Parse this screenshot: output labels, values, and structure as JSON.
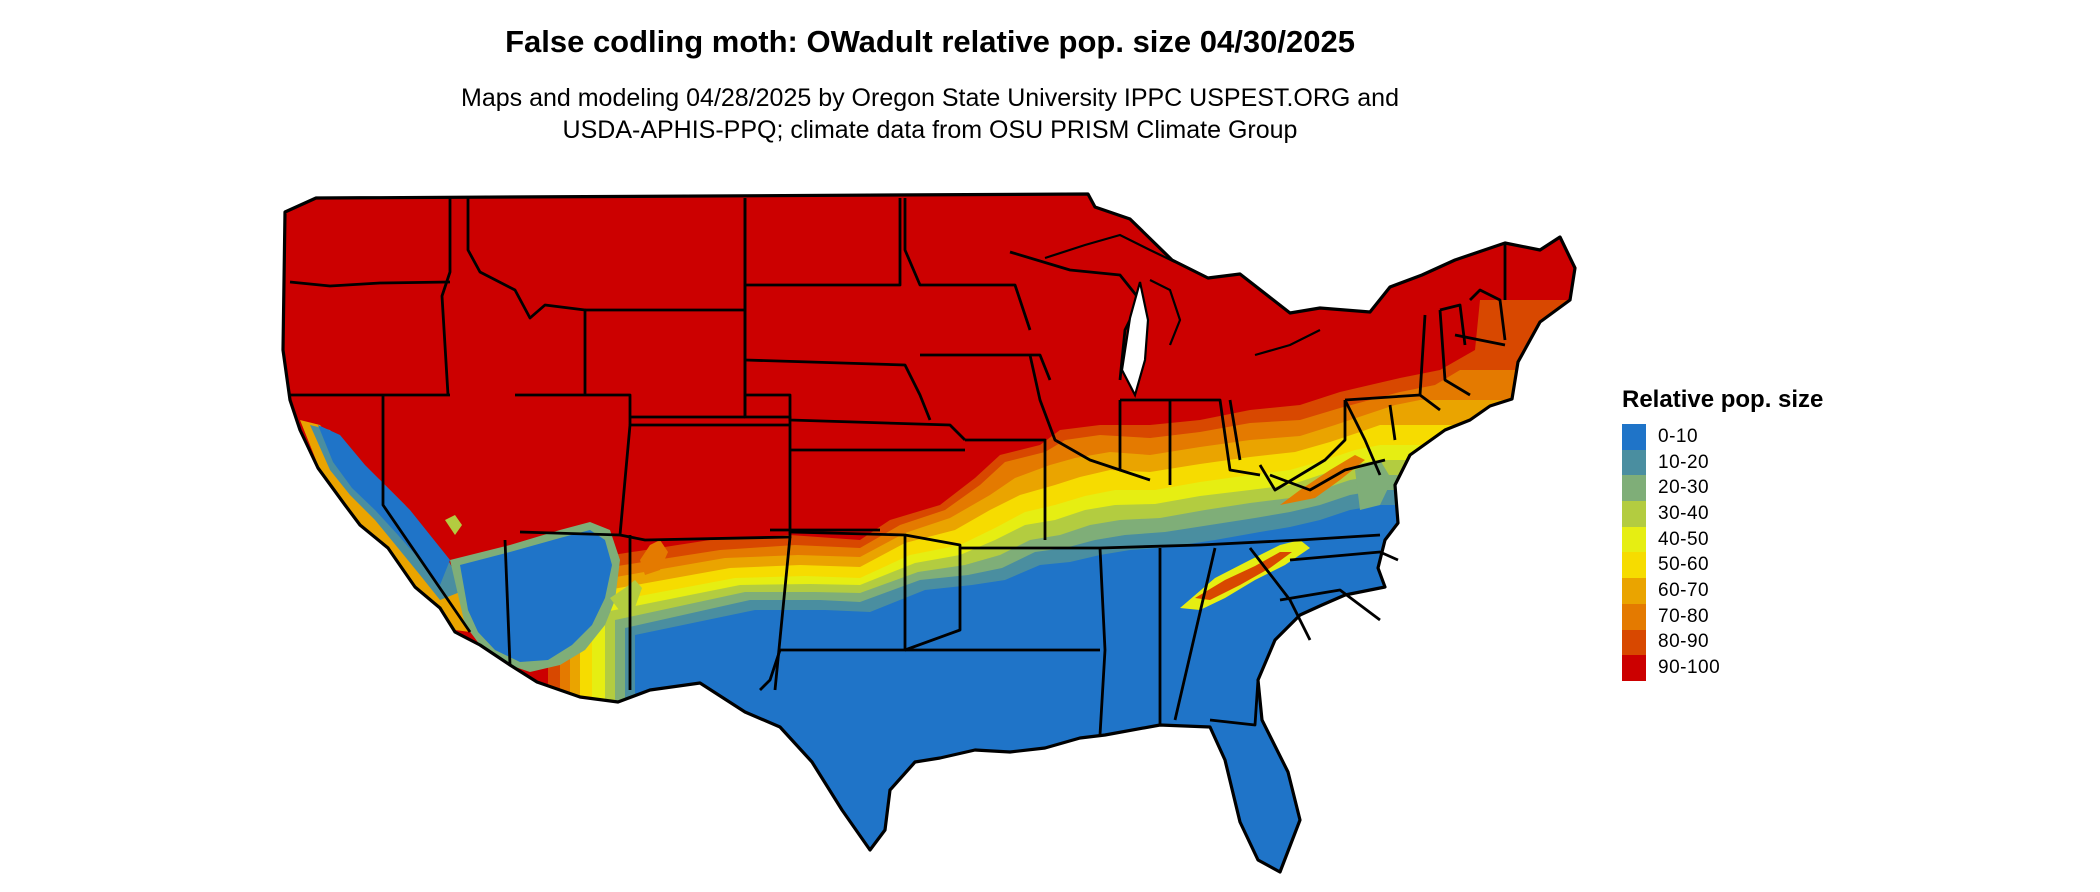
{
  "title": "False codling moth: OWadult relative pop. size 04/30/2025",
  "subtitle": {
    "line1": "Maps and modeling 04/28/2025 by Oregon State University IPPC USPEST.ORG and",
    "line2": "USDA-APHIS-PPQ; climate data from OSU PRISM Climate Group"
  },
  "legend": {
    "title": "Relative pop. size",
    "items": [
      {
        "label": "0-10",
        "color": "#1f74c8"
      },
      {
        "label": "10-20",
        "color": "#4a8ea0"
      },
      {
        "label": "20-30",
        "color": "#7fae78"
      },
      {
        "label": "30-40",
        "color": "#b3cc40"
      },
      {
        "label": "40-50",
        "color": "#e6ee12"
      },
      {
        "label": "50-60",
        "color": "#f6dc00"
      },
      {
        "label": "60-70",
        "color": "#eaa400"
      },
      {
        "label": "70-80",
        "color": "#e47a00"
      },
      {
        "label": "80-90",
        "color": "#d84800"
      },
      {
        "label": "90-100",
        "color": "#cc0000"
      }
    ]
  }
}
